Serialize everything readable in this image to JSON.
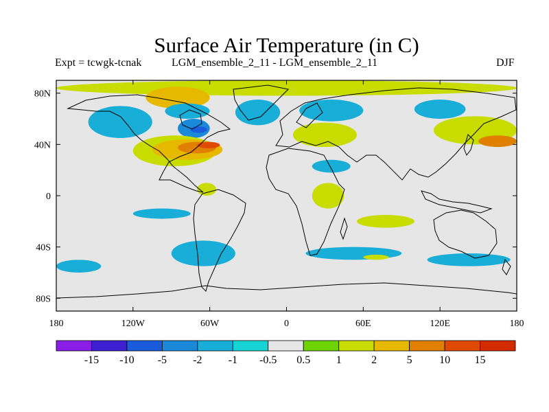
{
  "title": "Surface Air Temperature (in C)",
  "left_label": "Expt = tcwgk-tcnak",
  "center_label": "LGM_ensemble_2_11 - LGM_ensemble_2_11",
  "right_label": "DJF",
  "chart_data": {
    "type": "heatmap",
    "variable": "Surface Air Temperature (in C)",
    "season": "DJF",
    "x_ticks": [
      "180",
      "120W",
      "60W",
      "0",
      "60E",
      "120E",
      "180"
    ],
    "y_ticks": [
      "80N",
      "40N",
      "0",
      "40S",
      "80S"
    ],
    "xlim": [
      -180,
      180
    ],
    "ylim": [
      -90,
      90
    ],
    "colorbar": {
      "levels": [
        "-15",
        "-10",
        "-5",
        "-2",
        "-1",
        "-0.5",
        "0.5",
        "1",
        "2",
        "5",
        "10",
        "15"
      ],
      "colors": [
        "#8a1ee6",
        "#3b1fd0",
        "#1a5cdc",
        "#1a8ad8",
        "#19aed8",
        "#16d4d4",
        "#e6e6e6",
        "#6ed400",
        "#c8dc00",
        "#e6b800",
        "#e08000",
        "#e04a00",
        "#d42a00"
      ]
    },
    "regions": [
      {
        "level": "1",
        "lon": [
          -180,
          180
        ],
        "lat": [
          78,
          90
        ]
      },
      {
        "level": "2",
        "lon": [
          -110,
          -60
        ],
        "lat": [
          68,
          85
        ]
      },
      {
        "level": "-1",
        "lon": [
          -155,
          -105
        ],
        "lat": [
          45,
          70
        ]
      },
      {
        "level": "-1",
        "lon": [
          -95,
          -60
        ],
        "lat": [
          60,
          72
        ]
      },
      {
        "level": "-2",
        "lon": [
          -85,
          -60
        ],
        "lat": [
          45,
          60
        ]
      },
      {
        "level": "-5",
        "lon": [
          -75,
          -62
        ],
        "lat": [
          49,
          54
        ]
      },
      {
        "level": "1",
        "lon": [
          -120,
          -55
        ],
        "lat": [
          23,
          47
        ]
      },
      {
        "level": "2",
        "lon": [
          -105,
          -50
        ],
        "lat": [
          28,
          44
        ]
      },
      {
        "level": "5",
        "lon": [
          -85,
          -55
        ],
        "lat": [
          33,
          42
        ]
      },
      {
        "level": "10",
        "lon": [
          -70,
          -52
        ],
        "lat": [
          37,
          42
        ]
      },
      {
        "level": "-1",
        "lon": [
          -40,
          -5
        ],
        "lat": [
          55,
          75
        ]
      },
      {
        "level": "-1",
        "lon": [
          10,
          60
        ],
        "lat": [
          58,
          75
        ]
      },
      {
        "level": "1",
        "lon": [
          5,
          55
        ],
        "lat": [
          38,
          57
        ]
      },
      {
        "level": "-1",
        "lon": [
          20,
          50
        ],
        "lat": [
          18,
          28
        ]
      },
      {
        "level": "-1",
        "lon": [
          100,
          140
        ],
        "lat": [
          60,
          75
        ]
      },
      {
        "level": "1",
        "lon": [
          115,
          180
        ],
        "lat": [
          40,
          62
        ]
      },
      {
        "level": "5",
        "lon": [
          150,
          180
        ],
        "lat": [
          38,
          47
        ]
      },
      {
        "level": "1",
        "lon": [
          -70,
          -55
        ],
        "lat": [
          0,
          10
        ]
      },
      {
        "level": "-1",
        "lon": [
          -120,
          -75
        ],
        "lat": [
          -18,
          -10
        ]
      },
      {
        "level": "-1",
        "lon": [
          -90,
          -40
        ],
        "lat": [
          -55,
          -35
        ]
      },
      {
        "level": "-1",
        "lon": [
          -180,
          -145
        ],
        "lat": [
          -60,
          -50
        ]
      },
      {
        "level": "-1",
        "lon": [
          15,
          90
        ],
        "lat": [
          -50,
          -40
        ]
      },
      {
        "level": "-1",
        "lon": [
          110,
          175
        ],
        "lat": [
          -55,
          -45
        ]
      },
      {
        "level": "1",
        "lon": [
          60,
          80
        ],
        "lat": [
          -50,
          -46
        ]
      },
      {
        "level": "1",
        "lon": [
          20,
          45
        ],
        "lat": [
          -10,
          10
        ]
      },
      {
        "level": "1",
        "lon": [
          55,
          100
        ],
        "lat": [
          -25,
          -15
        ]
      }
    ]
  }
}
